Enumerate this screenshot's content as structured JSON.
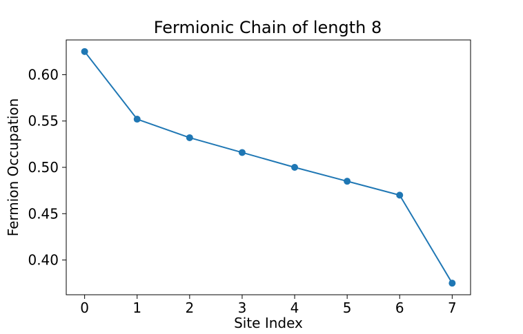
{
  "chart_data": {
    "type": "line",
    "title": "Fermionic Chain of length 8",
    "xlabel": "Site Index",
    "ylabel": "Fermion Occupation",
    "x": [
      0,
      1,
      2,
      3,
      4,
      5,
      6,
      7
    ],
    "series": [
      {
        "values": [
          0.625,
          0.552,
          0.532,
          0.516,
          0.5,
          0.485,
          0.47,
          0.375
        ],
        "color": "#1f77b4",
        "marker": "circle"
      }
    ],
    "xlim": [
      -0.35,
      7.35
    ],
    "ylim": [
      0.3625,
      0.6375
    ],
    "x_ticks": [
      "0",
      "1",
      "2",
      "3",
      "4",
      "5",
      "6",
      "7"
    ],
    "y_ticks": [
      "0.40",
      "0.45",
      "0.50",
      "0.55",
      "0.60"
    ],
    "grid": false,
    "legend": "none"
  }
}
